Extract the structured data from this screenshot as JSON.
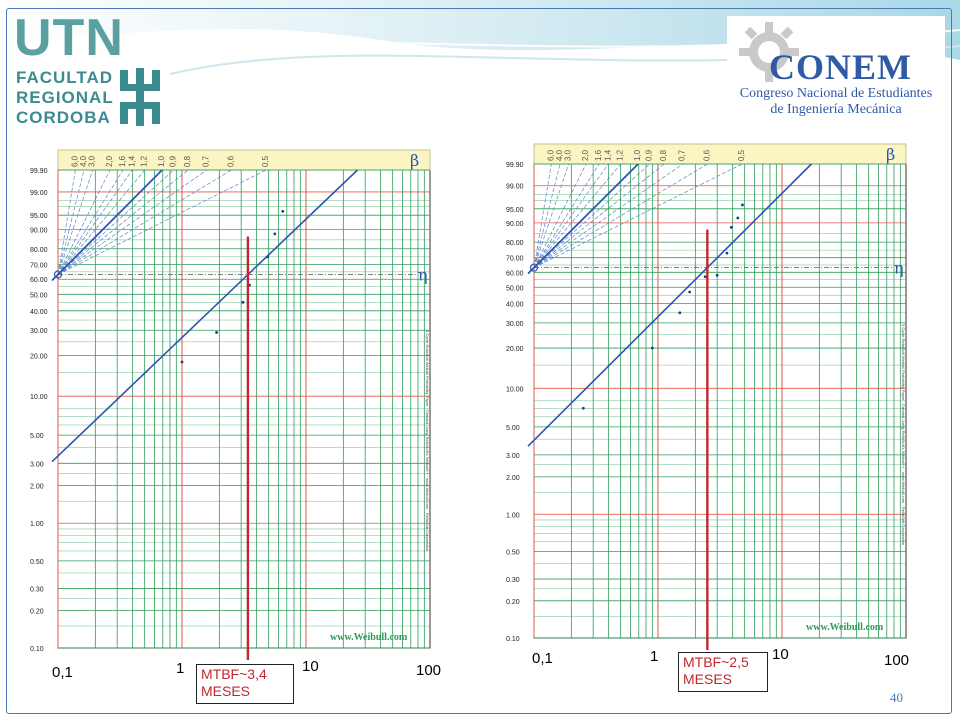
{
  "header": {
    "left_logo": {
      "icon": "utn-logo-icon",
      "word": "UTN",
      "lines": [
        "FACULTAD",
        "REGIONAL",
        "CORDOBA"
      ]
    },
    "right_logo": {
      "icon": "conem-gear-icon",
      "title": "CONEM",
      "subtitle_1": "Congreso Nacional de Estudiantes",
      "subtitle_2": "de Ingeniería Mecánica"
    }
  },
  "page_number": "40",
  "chart_data": [
    {
      "type": "line",
      "title": "",
      "scale": "weibull",
      "x_log_range": [
        0.1,
        100
      ],
      "x_tick_labels": [
        "0,1",
        "1",
        "10",
        "100"
      ],
      "y_tick_labels": [
        "99.90",
        "99.00",
        "95.00",
        "90.00",
        "80.00",
        "70.00",
        "60.00",
        "50.00",
        "40.00",
        "30.00",
        "20.00",
        "10.00",
        "5.00",
        "3.00",
        "2.00",
        "1.00",
        "0.50",
        "0.30",
        "0.20",
        "0.10"
      ],
      "beta_labels": [
        "6,0",
        "4,0",
        "3,0",
        "2,0",
        "1,6",
        "1,4",
        "1,2",
        "1,0",
        "0,9",
        "0,8",
        "0,7",
        "0,6",
        "0,5"
      ],
      "beta_symbol": "β",
      "eta_symbol": "η",
      "watermark": "www.Weibull.com",
      "side_note": "3 Cycle ReliaSoft Weibull Probability Paper · Created Using ReliaSoft's Weibull++ · www.Weibull.com · ReliaSoft Corporation",
      "fit_line": {
        "beta": 0.95,
        "eta": 3.4
      },
      "points": [
        {
          "x": 1.0,
          "p": 18
        },
        {
          "x": 1.9,
          "p": 29
        },
        {
          "x": 3.1,
          "p": 45
        },
        {
          "x": 3.5,
          "p": 56
        },
        {
          "x": 4.9,
          "p": 75
        },
        {
          "x": 5.6,
          "p": 88
        },
        {
          "x": 6.5,
          "p": 96
        }
      ],
      "mtbf": {
        "x": 3.4,
        "label_1": "MTBF~3,4",
        "label_2": "MESES"
      }
    },
    {
      "type": "line",
      "title": "",
      "scale": "weibull",
      "x_log_range": [
        0.1,
        100
      ],
      "x_tick_labels": [
        "0,1",
        "1",
        "10",
        "100"
      ],
      "y_tick_labels": [
        "99.90",
        "99.00",
        "95.00",
        "90.00",
        "80.00",
        "70.00",
        "60.00",
        "50.00",
        "40.00",
        "30.00",
        "20.00",
        "10.00",
        "5.00",
        "3.00",
        "2.00",
        "1.00",
        "0.50",
        "0.30",
        "0.20",
        "0.10"
      ],
      "beta_labels": [
        "6,0",
        "4,0",
        "3,0",
        "2,0",
        "1,6",
        "1,4",
        "1,2",
        "1,0",
        "0,9",
        "0,8",
        "0,7",
        "0,6",
        "0,5"
      ],
      "beta_symbol": "β",
      "eta_symbol": "η",
      "watermark": "www.Weibull.com",
      "side_note": "3 Cycle ReliaSoft Weibull Probability Paper · Created Using ReliaSoft's Weibull++ · www.Weibull.com · ReliaSoft Corporation",
      "fit_line": {
        "beta": 1.0,
        "eta": 2.5
      },
      "points": [
        {
          "x": 0.25,
          "p": 7
        },
        {
          "x": 0.9,
          "p": 20
        },
        {
          "x": 1.5,
          "p": 35
        },
        {
          "x": 1.8,
          "p": 47
        },
        {
          "x": 2.4,
          "p": 57
        },
        {
          "x": 3.0,
          "p": 58
        },
        {
          "x": 3.6,
          "p": 73
        },
        {
          "x": 3.9,
          "p": 88
        },
        {
          "x": 4.4,
          "p": 92
        },
        {
          "x": 4.8,
          "p": 96
        }
      ],
      "mtbf": {
        "x": 2.5,
        "label_1": "MTBF~2,5",
        "label_2": "MESES"
      }
    }
  ]
}
